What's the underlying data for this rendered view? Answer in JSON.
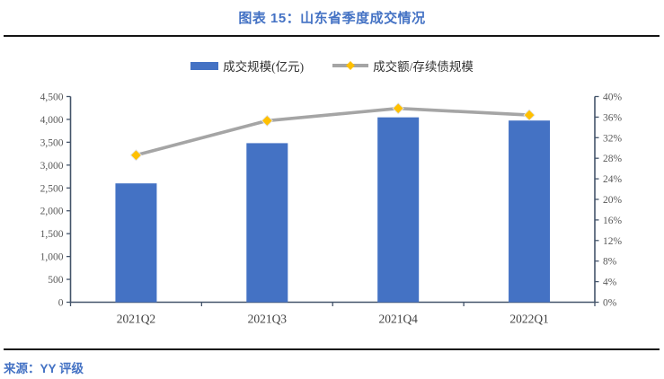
{
  "header": {
    "title": "图表 15：山东省季度成交情况"
  },
  "legend": {
    "bar_label": "成交规模(亿元)",
    "line_label": "成交额/存续债规模"
  },
  "footer": {
    "source": "来源：YY 评级"
  },
  "colors": {
    "accent": "#4472C4",
    "bar": "#4472C4",
    "line": "#A5A5A5",
    "marker": "#FFC000",
    "marker_edge": "#E3E3E3",
    "axis": "#44546A",
    "tick_text": "#595959",
    "category_text": "#404040",
    "divider": "#141414"
  },
  "chart_data": {
    "type": "bar",
    "subtype": "bar-line-combo",
    "title": "图表 15：山东省季度成交情况",
    "categories": [
      "2021Q2",
      "2021Q3",
      "2021Q4",
      "2022Q1"
    ],
    "series": [
      {
        "name": "成交规模(亿元)",
        "type": "bar",
        "axis": "left",
        "values": [
          2600,
          3480,
          4045,
          3975
        ]
      },
      {
        "name": "成交额/存续债规模",
        "type": "line",
        "axis": "right",
        "unit": "%",
        "values": [
          28.6,
          35.3,
          37.7,
          36.4
        ]
      }
    ],
    "left_axis": {
      "min": 0,
      "max": 4500,
      "step": 500,
      "tick_labels": [
        "0",
        "500",
        "1,000",
        "1,500",
        "2,000",
        "2,500",
        "3,000",
        "3,500",
        "4,000",
        "4,500"
      ]
    },
    "right_axis": {
      "min": 0,
      "max": 40,
      "step": 4,
      "tick_labels": [
        "0%",
        "4%",
        "8%",
        "12%",
        "16%",
        "20%",
        "24%",
        "28%",
        "32%",
        "36%",
        "40%"
      ]
    },
    "grid": false,
    "legend_position": "top"
  }
}
